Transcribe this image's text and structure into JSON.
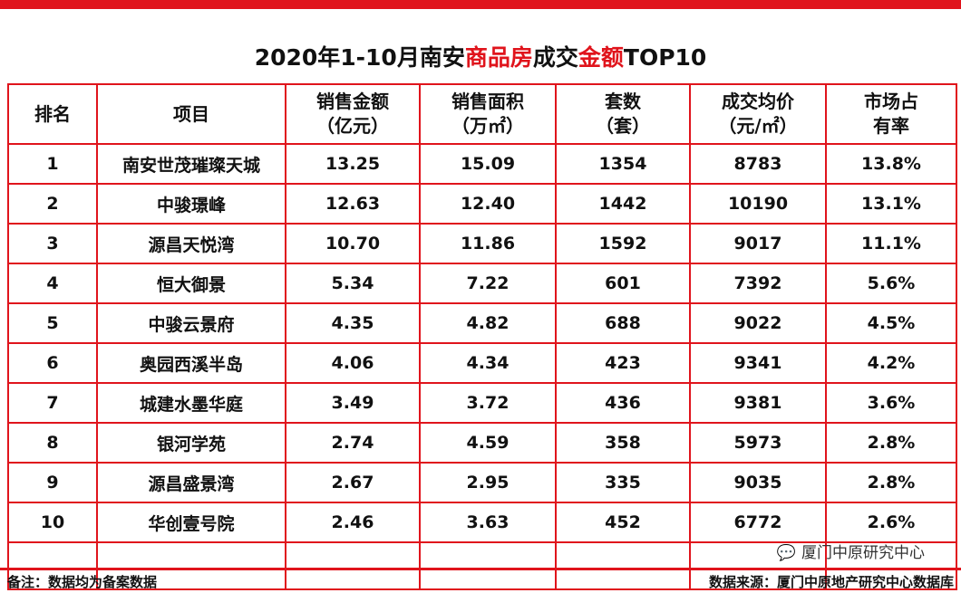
{
  "colors": {
    "accent": "#e0141c",
    "text": "#111111"
  },
  "title": {
    "part1": "2020年1-10月南安",
    "hl1": "商品房",
    "part2": "成交",
    "hl2": "金额",
    "part3": "TOP10"
  },
  "table": {
    "headers": [
      {
        "line1": "排名",
        "line2": ""
      },
      {
        "line1": "项目",
        "line2": ""
      },
      {
        "line1": "销售金额",
        "line2": "（亿元）"
      },
      {
        "line1": "销售面积",
        "line2": "（万㎡）"
      },
      {
        "line1": "套数",
        "line2": "（套）"
      },
      {
        "line1": "成交均价",
        "line2": "（元/㎡）"
      },
      {
        "line1": "市场占",
        "line2": "有率"
      }
    ],
    "rows": [
      [
        "1",
        "南安世茂璀璨天城",
        "13.25",
        "15.09",
        "1354",
        "8783",
        "13.8%"
      ],
      [
        "2",
        "中骏璟峰",
        "12.63",
        "12.40",
        "1442",
        "10190",
        "13.1%"
      ],
      [
        "3",
        "源昌天悦湾",
        "10.70",
        "11.86",
        "1592",
        "9017",
        "11.1%"
      ],
      [
        "4",
        "恒大御景",
        "5.34",
        "7.22",
        "601",
        "7392",
        "5.6%"
      ],
      [
        "5",
        "中骏云景府",
        "4.35",
        "4.82",
        "688",
        "9022",
        "4.5%"
      ],
      [
        "6",
        "奥园西溪半岛",
        "4.06",
        "4.34",
        "423",
        "9341",
        "4.2%"
      ],
      [
        "7",
        "城建水墨华庭",
        "3.49",
        "3.72",
        "436",
        "9381",
        "3.6%"
      ],
      [
        "8",
        "银河学苑",
        "2.74",
        "4.59",
        "358",
        "5973",
        "2.8%"
      ],
      [
        "9",
        "源昌盛景湾",
        "2.67",
        "2.95",
        "335",
        "9035",
        "2.8%"
      ],
      [
        "10",
        "华创壹号院",
        "2.46",
        "3.63",
        "452",
        "6772",
        "2.6%"
      ]
    ]
  },
  "watermark_account": "厦门中原研究中心",
  "footer": {
    "note": "备注：数据均为备案数据",
    "source": "数据来源：厦门中原地产研究中心数据库"
  }
}
